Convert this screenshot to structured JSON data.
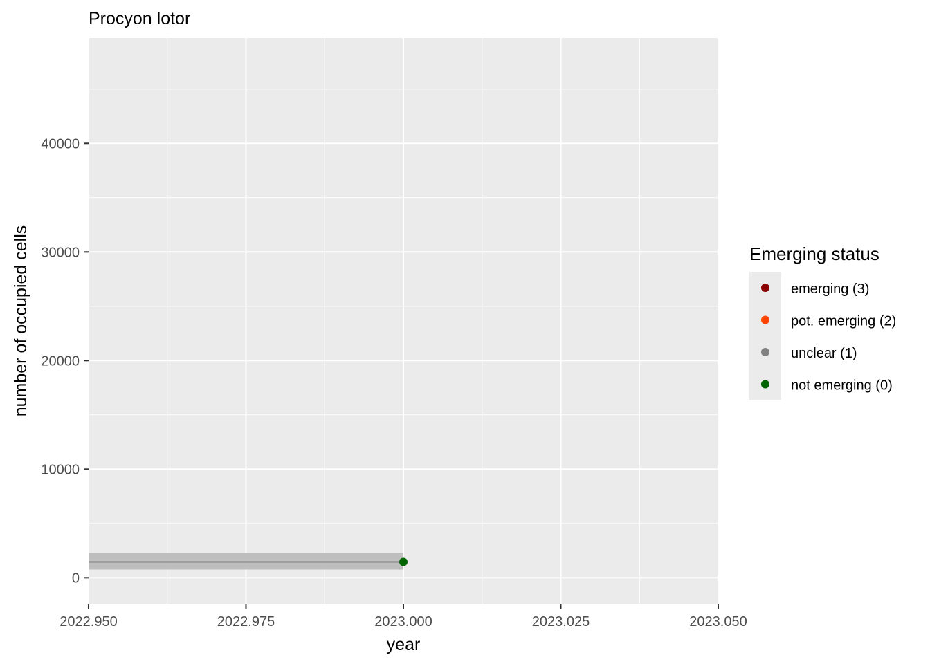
{
  "chart_data": {
    "type": "line",
    "title": "Procyon lotor",
    "xlabel": "year",
    "ylabel": "number of occupied cells",
    "xlim": [
      2022.95,
      2023.05
    ],
    "ylim": [
      -2400,
      49700
    ],
    "x_ticks": [
      "2022.950",
      "2022.975",
      "2023.000",
      "2023.025",
      "2023.050"
    ],
    "x_tick_values": [
      2022.95,
      2022.975,
      2023.0,
      2023.025,
      2023.05
    ],
    "y_ticks": [
      "0",
      "10000",
      "20000",
      "30000",
      "40000"
    ],
    "y_tick_values": [
      0,
      10000,
      20000,
      30000,
      40000
    ],
    "grid": true,
    "series": [
      {
        "x": [
          2022.95,
          2023.0
        ],
        "y": [
          1450,
          1450
        ],
        "ribbon_low": [
          750,
          750
        ],
        "ribbon_high": [
          2250,
          2250
        ]
      }
    ],
    "points": [
      {
        "x": 2023.0,
        "y": 1450,
        "status": "not emerging (0)",
        "color": "#006400"
      }
    ],
    "legend": {
      "title": "Emerging status",
      "placement": "right",
      "entries": [
        {
          "label": "emerging (3)",
          "color": "#8B0000"
        },
        {
          "label": "pot. emerging (2)",
          "color": "#FF4500"
        },
        {
          "label": "unclear (1)",
          "color": "#808080"
        },
        {
          "label": "not emerging (0)",
          "color": "#006400"
        }
      ]
    },
    "colors": {
      "panel_background": "#ebebeb",
      "grid": "#ffffff",
      "ribbon": "#bebebe",
      "line": "#808080"
    }
  }
}
